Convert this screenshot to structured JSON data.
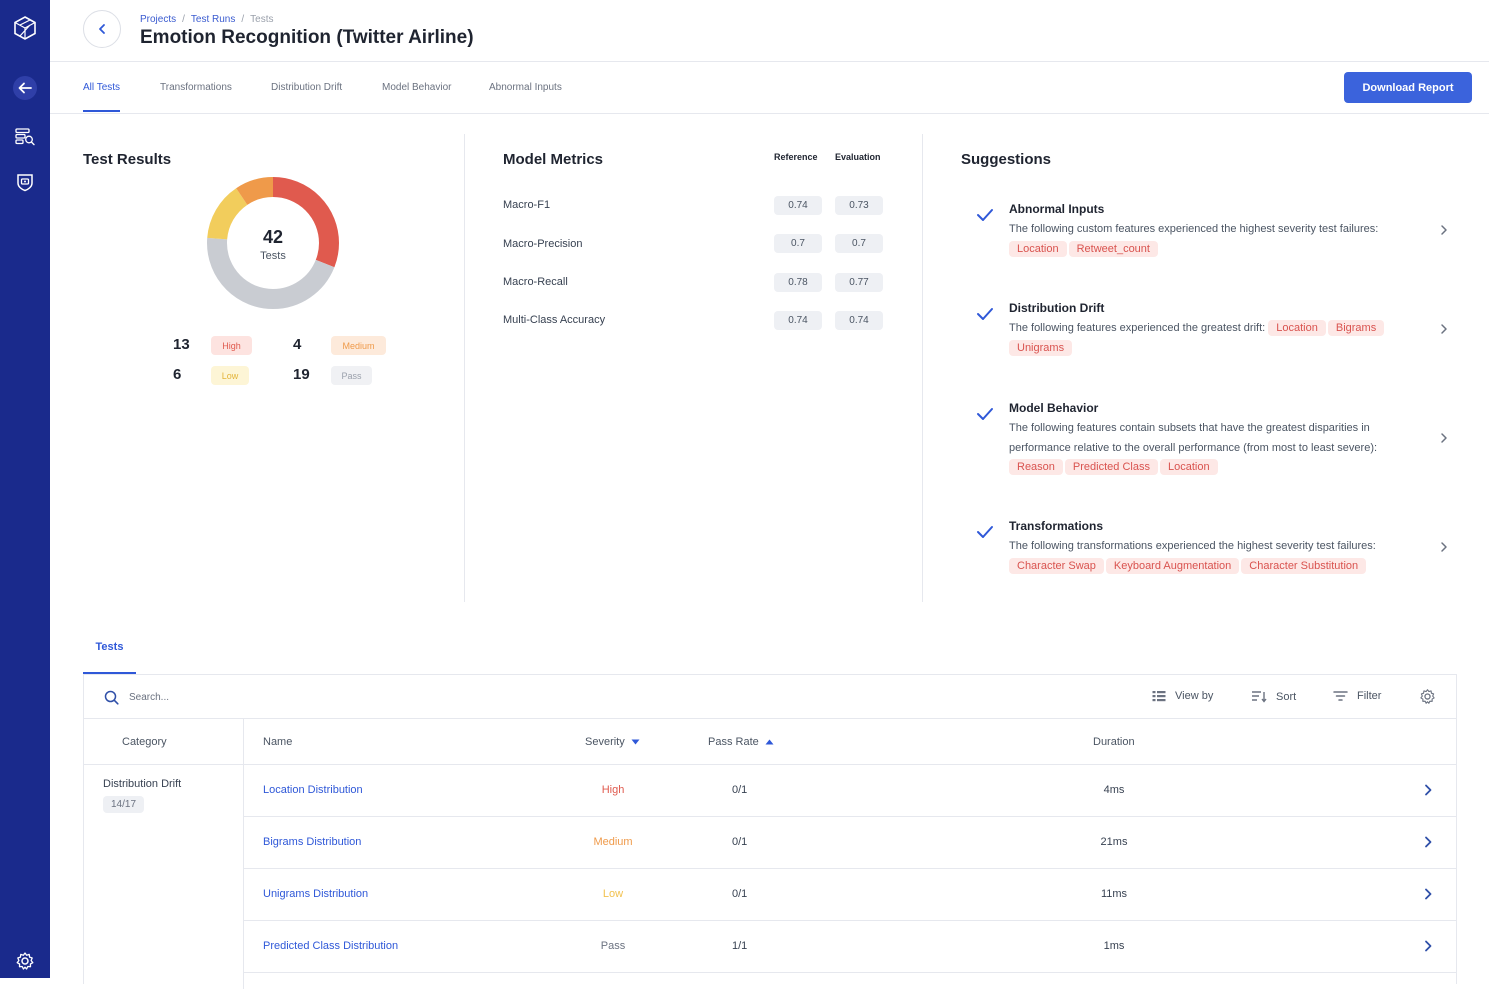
{
  "colors": {
    "rail": "#1a2a8c",
    "accent": "#2f58d8",
    "high": "#e05a4e",
    "medium": "#ef9a4a",
    "low": "#f2cd5c",
    "pass": "#c9ccd2"
  },
  "rail": {
    "icons": [
      "logo-icon",
      "arrow-left-icon",
      "data-search-icon",
      "shield-icon",
      "gear-icon"
    ]
  },
  "header": {
    "breadcrumb": [
      "Projects",
      "Test Runs",
      "Tests"
    ],
    "title": "Emotion Recognition (Twitter Airline)"
  },
  "tabs": [
    "All Tests",
    "Transformations",
    "Distribution Drift",
    "Model Behavior",
    "Abnormal Inputs"
  ],
  "download_label": "Download Report",
  "test_results": {
    "title": "Test Results",
    "total": "42",
    "total_label": "Tests",
    "counts": [
      {
        "value": "13",
        "label": "High",
        "fraction": 0.3095
      },
      {
        "value": "4",
        "label": "Medium",
        "fraction": 0.0952
      },
      {
        "value": "6",
        "label": "Low",
        "fraction": 0.1429
      },
      {
        "value": "19",
        "label": "Pass",
        "fraction": 0.4524
      }
    ]
  },
  "model_metrics": {
    "title": "Model Metrics",
    "col_reference": "Reference",
    "col_evaluation": "Evaluation",
    "rows": [
      {
        "name": "Macro-F1",
        "reference": "0.74",
        "evaluation": "0.73"
      },
      {
        "name": "Macro-Precision",
        "reference": "0.7",
        "evaluation": "0.7"
      },
      {
        "name": "Macro-Recall",
        "reference": "0.78",
        "evaluation": "0.77"
      },
      {
        "name": "Multi-Class Accuracy",
        "reference": "0.74",
        "evaluation": "0.74"
      }
    ]
  },
  "suggestions": {
    "title": "Suggestions",
    "items": [
      {
        "title": "Abnormal Inputs",
        "desc": "The following custom features experienced the highest severity test failures:",
        "tags": [
          "Location",
          "Retweet_count"
        ]
      },
      {
        "title": "Distribution Drift",
        "desc": "The following features experienced the greatest drift:",
        "tags": [
          "Location",
          "Bigrams",
          "Unigrams"
        ]
      },
      {
        "title": "Model Behavior",
        "desc": "The following features contain subsets that have the greatest disparities in performance relative to the overall performance (from most to least severe):",
        "tags": [
          "Reason",
          "Predicted Class",
          "Location"
        ]
      },
      {
        "title": "Transformations",
        "desc": "The following transformations experienced the highest severity test failures:",
        "tags": [
          "Character Swap",
          "Keyboard Augmentation",
          "Character Substitution"
        ]
      }
    ]
  },
  "tests": {
    "tab_label": "Tests",
    "search_placeholder": "Search...",
    "toolbar": {
      "view_by": "View by",
      "sort": "Sort",
      "filter": "Filter"
    },
    "columns": {
      "category": "Category",
      "name": "Name",
      "severity": "Severity",
      "pass_rate": "Pass Rate",
      "duration": "Duration"
    },
    "category": {
      "name": "Distribution Drift",
      "count": "14/17"
    },
    "rows": [
      {
        "name": "Location Distribution",
        "severity": "High",
        "pass_rate": "0/1",
        "duration": "4ms"
      },
      {
        "name": "Bigrams Distribution",
        "severity": "Medium",
        "pass_rate": "0/1",
        "duration": "21ms"
      },
      {
        "name": "Unigrams Distribution",
        "severity": "Low",
        "pass_rate": "0/1",
        "duration": "11ms"
      },
      {
        "name": "Predicted Class Distribution",
        "severity": "Pass",
        "pass_rate": "1/1",
        "duration": "1ms"
      }
    ]
  }
}
